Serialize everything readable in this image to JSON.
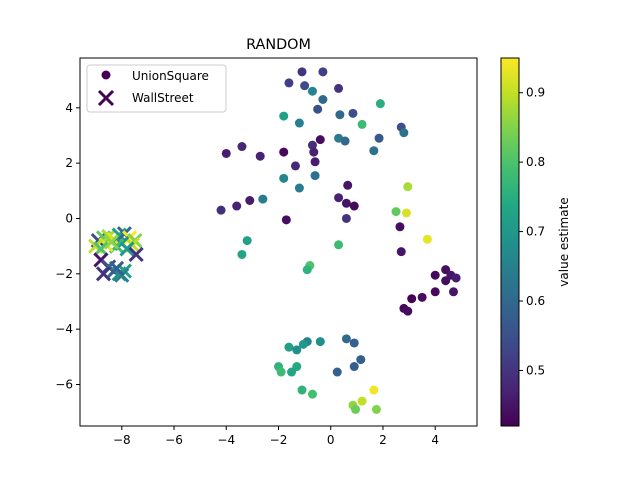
{
  "chart_data": {
    "type": "scatter",
    "title": "RANDOM",
    "xlabel": "",
    "ylabel": "",
    "xlim": [
      -9.6,
      5.6
    ],
    "ylim": [
      -7.5,
      5.8
    ],
    "x_ticks": [
      -8,
      -6,
      -4,
      -2,
      0,
      2,
      4
    ],
    "y_ticks": [
      -6,
      -4,
      -2,
      0,
      2,
      4
    ],
    "x_tick_labels": [
      "−8",
      "−6",
      "−4",
      "−2",
      "0",
      "2",
      "4"
    ],
    "y_tick_labels": [
      "−6",
      "−4",
      "−2",
      "0",
      "2",
      "4"
    ],
    "grid": false,
    "legend_position": "top-left",
    "colormap": "viridis",
    "colorbar": {
      "label": "value estimate",
      "range": [
        0.42,
        0.95
      ],
      "ticks": [
        0.5,
        0.6,
        0.7,
        0.8,
        0.9
      ],
      "tick_labels": [
        "0.5",
        "0.6",
        "0.7",
        "0.8",
        "0.9"
      ]
    },
    "series": [
      {
        "name": "UnionSquare",
        "marker": "circle",
        "points": [
          {
            "x": -1.1,
            "y": 5.3,
            "v": 0.5
          },
          {
            "x": -0.3,
            "y": 5.3,
            "v": 0.52
          },
          {
            "x": -1.6,
            "y": 4.9,
            "v": 0.52
          },
          {
            "x": -1.0,
            "y": 4.8,
            "v": 0.54
          },
          {
            "x": -0.7,
            "y": 4.6,
            "v": 0.66
          },
          {
            "x": 0.3,
            "y": 4.7,
            "v": 0.5
          },
          {
            "x": -0.3,
            "y": 4.3,
            "v": 0.6
          },
          {
            "x": -0.5,
            "y": 3.95,
            "v": 0.55
          },
          {
            "x": 1.9,
            "y": 4.15,
            "v": 0.75
          },
          {
            "x": -1.8,
            "y": 3.7,
            "v": 0.72
          },
          {
            "x": -1.2,
            "y": 3.45,
            "v": 0.65
          },
          {
            "x": 0.35,
            "y": 3.75,
            "v": 0.6
          },
          {
            "x": 0.85,
            "y": 3.8,
            "v": 0.55
          },
          {
            "x": 1.2,
            "y": 3.4,
            "v": 0.78
          },
          {
            "x": 2.7,
            "y": 3.3,
            "v": 0.55
          },
          {
            "x": 2.8,
            "y": 3.1,
            "v": 0.62
          },
          {
            "x": 0.3,
            "y": 2.9,
            "v": 0.64
          },
          {
            "x": 0.55,
            "y": 2.8,
            "v": 0.6
          },
          {
            "x": 1.85,
            "y": 2.9,
            "v": 0.57
          },
          {
            "x": -0.4,
            "y": 2.85,
            "v": 0.44
          },
          {
            "x": -0.7,
            "y": 2.65,
            "v": 0.49
          },
          {
            "x": -3.4,
            "y": 2.6,
            "v": 0.48
          },
          {
            "x": -4.0,
            "y": 2.35,
            "v": 0.46
          },
          {
            "x": -2.7,
            "y": 2.25,
            "v": 0.47
          },
          {
            "x": -1.8,
            "y": 2.4,
            "v": 0.43
          },
          {
            "x": -0.65,
            "y": 2.4,
            "v": 0.47
          },
          {
            "x": 1.65,
            "y": 2.45,
            "v": 0.62
          },
          {
            "x": -0.6,
            "y": 2.05,
            "v": 0.46
          },
          {
            "x": -1.35,
            "y": 1.9,
            "v": 0.48
          },
          {
            "x": -1.8,
            "y": 1.45,
            "v": 0.66
          },
          {
            "x": -0.6,
            "y": 1.55,
            "v": 0.62
          },
          {
            "x": 0.65,
            "y": 1.2,
            "v": 0.45
          },
          {
            "x": 2.95,
            "y": 1.15,
            "v": 0.88
          },
          {
            "x": -1.2,
            "y": 1.1,
            "v": 0.64
          },
          {
            "x": -3.1,
            "y": 0.65,
            "v": 0.46
          },
          {
            "x": -2.6,
            "y": 0.7,
            "v": 0.64
          },
          {
            "x": 0.3,
            "y": 0.75,
            "v": 0.47
          },
          {
            "x": -3.6,
            "y": 0.45,
            "v": 0.47
          },
          {
            "x": -4.2,
            "y": 0.3,
            "v": 0.49
          },
          {
            "x": 0.6,
            "y": 0.55,
            "v": 0.45
          },
          {
            "x": 0.9,
            "y": 0.45,
            "v": 0.43
          },
          {
            "x": 2.5,
            "y": 0.25,
            "v": 0.82
          },
          {
            "x": 2.9,
            "y": 0.2,
            "v": 0.92
          },
          {
            "x": -1.7,
            "y": -0.05,
            "v": 0.44
          },
          {
            "x": 0.6,
            "y": 0.0,
            "v": 0.5
          },
          {
            "x": 2.65,
            "y": -0.3,
            "v": 0.44
          },
          {
            "x": 3.7,
            "y": -0.75,
            "v": 0.93
          },
          {
            "x": 0.3,
            "y": -0.95,
            "v": 0.78
          },
          {
            "x": -3.2,
            "y": -0.8,
            "v": 0.72
          },
          {
            "x": -3.4,
            "y": -1.3,
            "v": 0.73
          },
          {
            "x": 2.7,
            "y": -1.2,
            "v": 0.45
          },
          {
            "x": -0.8,
            "y": -1.7,
            "v": 0.8
          },
          {
            "x": -0.9,
            "y": -1.85,
            "v": 0.76
          },
          {
            "x": 4.4,
            "y": -1.85,
            "v": 0.44
          },
          {
            "x": 4.0,
            "y": -2.05,
            "v": 0.43
          },
          {
            "x": 4.6,
            "y": -2.05,
            "v": 0.45
          },
          {
            "x": 4.8,
            "y": -2.15,
            "v": 0.46
          },
          {
            "x": 4.4,
            "y": -2.25,
            "v": 0.44
          },
          {
            "x": 4.0,
            "y": -2.65,
            "v": 0.43
          },
          {
            "x": 4.7,
            "y": -2.65,
            "v": 0.45
          },
          {
            "x": 3.5,
            "y": -2.85,
            "v": 0.44
          },
          {
            "x": 3.1,
            "y": -2.9,
            "v": 0.42
          },
          {
            "x": 2.8,
            "y": -3.25,
            "v": 0.43
          },
          {
            "x": 2.95,
            "y": -3.35,
            "v": 0.44
          },
          {
            "x": 0.6,
            "y": -4.35,
            "v": 0.6
          },
          {
            "x": 0.9,
            "y": -4.5,
            "v": 0.58
          },
          {
            "x": -0.9,
            "y": -4.45,
            "v": 0.66
          },
          {
            "x": -0.4,
            "y": -4.45,
            "v": 0.68
          },
          {
            "x": -1.05,
            "y": -4.55,
            "v": 0.7
          },
          {
            "x": -1.6,
            "y": -4.65,
            "v": 0.72
          },
          {
            "x": -1.3,
            "y": -4.75,
            "v": 0.68
          },
          {
            "x": 1.15,
            "y": -5.1,
            "v": 0.58
          },
          {
            "x": -2.0,
            "y": -5.35,
            "v": 0.76
          },
          {
            "x": -1.3,
            "y": -5.35,
            "v": 0.74
          },
          {
            "x": 0.9,
            "y": -5.35,
            "v": 0.58
          },
          {
            "x": -1.5,
            "y": -5.55,
            "v": 0.73
          },
          {
            "x": -1.9,
            "y": -5.55,
            "v": 0.78
          },
          {
            "x": 0.25,
            "y": -5.55,
            "v": 0.58
          },
          {
            "x": -1.1,
            "y": -6.2,
            "v": 0.76
          },
          {
            "x": 1.65,
            "y": -6.2,
            "v": 0.94
          },
          {
            "x": -0.7,
            "y": -6.35,
            "v": 0.79
          },
          {
            "x": 1.2,
            "y": -6.6,
            "v": 0.9
          },
          {
            "x": 0.85,
            "y": -6.75,
            "v": 0.86
          },
          {
            "x": 0.95,
            "y": -6.9,
            "v": 0.83
          },
          {
            "x": 1.75,
            "y": -6.9,
            "v": 0.85
          }
        ]
      },
      {
        "name": "WallStreet",
        "marker": "x",
        "points": [
          {
            "x": -8.9,
            "y": -0.8,
            "v": 0.55
          },
          {
            "x": -8.7,
            "y": -0.7,
            "v": 0.82
          },
          {
            "x": -8.5,
            "y": -0.65,
            "v": 0.88
          },
          {
            "x": -8.3,
            "y": -0.75,
            "v": 0.92
          },
          {
            "x": -8.1,
            "y": -0.6,
            "v": 0.72
          },
          {
            "x": -7.9,
            "y": -0.55,
            "v": 0.6
          },
          {
            "x": -7.7,
            "y": -0.7,
            "v": 0.95
          },
          {
            "x": -7.5,
            "y": -0.8,
            "v": 0.85
          },
          {
            "x": -7.6,
            "y": -0.95,
            "v": 0.9
          },
          {
            "x": -8.0,
            "y": -0.9,
            "v": 0.68
          },
          {
            "x": -8.2,
            "y": -1.0,
            "v": 0.78
          },
          {
            "x": -8.6,
            "y": -0.95,
            "v": 0.93
          },
          {
            "x": -9.0,
            "y": -1.0,
            "v": 0.9
          },
          {
            "x": -8.8,
            "y": -1.1,
            "v": 0.8
          },
          {
            "x": -8.4,
            "y": -0.85,
            "v": 0.86
          },
          {
            "x": -7.8,
            "y": -1.1,
            "v": 0.7
          },
          {
            "x": -7.45,
            "y": -1.3,
            "v": 0.5
          },
          {
            "x": -8.8,
            "y": -1.5,
            "v": 0.45
          },
          {
            "x": -8.5,
            "y": -1.75,
            "v": 0.55
          },
          {
            "x": -8.3,
            "y": -1.9,
            "v": 0.62
          },
          {
            "x": -8.1,
            "y": -2.0,
            "v": 0.68
          },
          {
            "x": -7.9,
            "y": -1.9,
            "v": 0.72
          },
          {
            "x": -8.0,
            "y": -2.05,
            "v": 0.65
          },
          {
            "x": -8.7,
            "y": -2.0,
            "v": 0.5
          },
          {
            "x": -8.2,
            "y": -1.8,
            "v": 0.58
          }
        ]
      }
    ]
  }
}
